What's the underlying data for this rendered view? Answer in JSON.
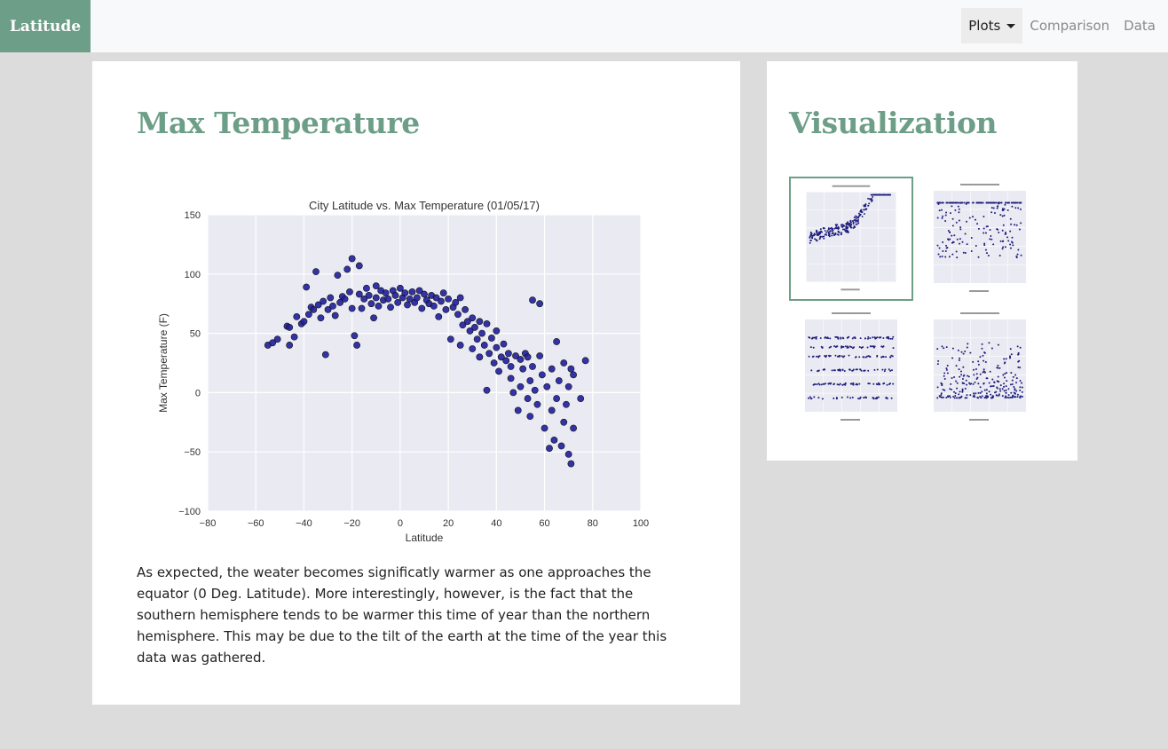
{
  "navbar": {
    "brand": "Latitude",
    "items": [
      {
        "label": "Plots",
        "active": true
      },
      {
        "label": "Comparison"
      },
      {
        "label": "Data"
      }
    ]
  },
  "main": {
    "title": "Max Temperature",
    "description": "As expected, the weater becomes significatly warmer as one approaches the equator (0 Deg. Latitude). More interestingly, however, is the fact that the southern hemisphere tends to be warmer this time of year than the northern hemisphere. This may be due to the tilt of the earth at the time of the year this data was gathered."
  },
  "sidebar": {
    "title": "Visualization",
    "thumbnails": [
      {
        "name": "max-temperature",
        "selected": true
      },
      {
        "name": "humidity"
      },
      {
        "name": "cloudiness"
      },
      {
        "name": "wind-speed"
      }
    ]
  },
  "colors": {
    "accent": "#6d9e87",
    "point_fill": "#1f1f9e",
    "plot_bg": "#eaeaf2"
  },
  "chart_data": {
    "type": "scatter",
    "title": "City Latitude vs. Max Temperature (01/05/17)",
    "xlabel": "Latitude",
    "ylabel": "Max Temperature (F)",
    "xlim": [
      -80,
      100
    ],
    "ylim": [
      -100,
      150
    ],
    "xticks": [
      -80,
      -60,
      -40,
      -20,
      0,
      20,
      40,
      60,
      80,
      100
    ],
    "yticks": [
      -100,
      -50,
      0,
      50,
      100,
      150
    ],
    "grid": true,
    "points": [
      [
        -55,
        40
      ],
      [
        -53,
        42
      ],
      [
        -51,
        45
      ],
      [
        -47,
        56
      ],
      [
        -46,
        55
      ],
      [
        -46,
        40
      ],
      [
        -44,
        47
      ],
      [
        -43,
        64
      ],
      [
        -41,
        58
      ],
      [
        -40,
        60
      ],
      [
        -39,
        89
      ],
      [
        -38,
        66
      ],
      [
        -37,
        72
      ],
      [
        -36,
        70
      ],
      [
        -35,
        102
      ],
      [
        -34,
        74
      ],
      [
        -33,
        63
      ],
      [
        -32,
        77
      ],
      [
        -31,
        32
      ],
      [
        -30,
        70
      ],
      [
        -29,
        80
      ],
      [
        -28,
        73
      ],
      [
        -27,
        65
      ],
      [
        -26,
        99
      ],
      [
        -25,
        76
      ],
      [
        -24,
        81
      ],
      [
        -23,
        79
      ],
      [
        -22,
        104
      ],
      [
        -21,
        85
      ],
      [
        -20,
        113
      ],
      [
        -20,
        71
      ],
      [
        -19,
        48
      ],
      [
        -18,
        40
      ],
      [
        -17,
        107
      ],
      [
        -17,
        83
      ],
      [
        -16,
        71
      ],
      [
        -15,
        79
      ],
      [
        -14,
        88
      ],
      [
        -13,
        82
      ],
      [
        -12,
        75
      ],
      [
        -11,
        63
      ],
      [
        -10,
        90
      ],
      [
        -10,
        80
      ],
      [
        -9,
        73
      ],
      [
        -8,
        86
      ],
      [
        -7,
        78
      ],
      [
        -6,
        84
      ],
      [
        -5,
        79
      ],
      [
        -4,
        72
      ],
      [
        -3,
        86
      ],
      [
        -2,
        82
      ],
      [
        -1,
        76
      ],
      [
        0,
        88
      ],
      [
        1,
        80
      ],
      [
        2,
        84
      ],
      [
        3,
        74
      ],
      [
        4,
        79
      ],
      [
        5,
        85
      ],
      [
        6,
        76
      ],
      [
        7,
        80
      ],
      [
        8,
        86
      ],
      [
        9,
        71
      ],
      [
        10,
        83
      ],
      [
        11,
        78
      ],
      [
        12,
        75
      ],
      [
        13,
        82
      ],
      [
        14,
        73
      ],
      [
        15,
        80
      ],
      [
        16,
        64
      ],
      [
        17,
        77
      ],
      [
        18,
        84
      ],
      [
        19,
        70
      ],
      [
        20,
        79
      ],
      [
        21,
        45
      ],
      [
        22,
        72
      ],
      [
        23,
        76
      ],
      [
        24,
        66
      ],
      [
        25,
        80
      ],
      [
        25,
        40
      ],
      [
        26,
        57
      ],
      [
        27,
        70
      ],
      [
        28,
        60
      ],
      [
        29,
        52
      ],
      [
        30,
        37
      ],
      [
        30,
        63
      ],
      [
        31,
        55
      ],
      [
        32,
        45
      ],
      [
        33,
        60
      ],
      [
        33,
        30
      ],
      [
        34,
        50
      ],
      [
        35,
        40
      ],
      [
        36,
        58
      ],
      [
        36,
        2
      ],
      [
        37,
        33
      ],
      [
        38,
        46
      ],
      [
        39,
        25
      ],
      [
        40,
        38
      ],
      [
        40,
        52
      ],
      [
        41,
        18
      ],
      [
        42,
        30
      ],
      [
        43,
        41
      ],
      [
        44,
        27
      ],
      [
        45,
        33
      ],
      [
        46,
        12
      ],
      [
        46,
        22
      ],
      [
        47,
        0
      ],
      [
        48,
        31
      ],
      [
        49,
        -15
      ],
      [
        50,
        28
      ],
      [
        50,
        5
      ],
      [
        51,
        20
      ],
      [
        52,
        33
      ],
      [
        53,
        -5
      ],
      [
        53,
        30
      ],
      [
        54,
        10
      ],
      [
        54,
        -20
      ],
      [
        55,
        78
      ],
      [
        55,
        22
      ],
      [
        56,
        2
      ],
      [
        57,
        -10
      ],
      [
        58,
        31
      ],
      [
        58,
        75
      ],
      [
        59,
        15
      ],
      [
        60,
        -30
      ],
      [
        61,
        5
      ],
      [
        62,
        -47
      ],
      [
        63,
        20
      ],
      [
        63,
        -15
      ],
      [
        64,
        -40
      ],
      [
        65,
        43
      ],
      [
        65,
        -5
      ],
      [
        66,
        10
      ],
      [
        67,
        -45
      ],
      [
        68,
        -25
      ],
      [
        68,
        25
      ],
      [
        69,
        -10
      ],
      [
        70,
        -52
      ],
      [
        70,
        5
      ],
      [
        71,
        -60
      ],
      [
        71,
        20
      ],
      [
        72,
        -30
      ],
      [
        72,
        15
      ],
      [
        75,
        -5
      ],
      [
        77,
        27
      ]
    ]
  }
}
